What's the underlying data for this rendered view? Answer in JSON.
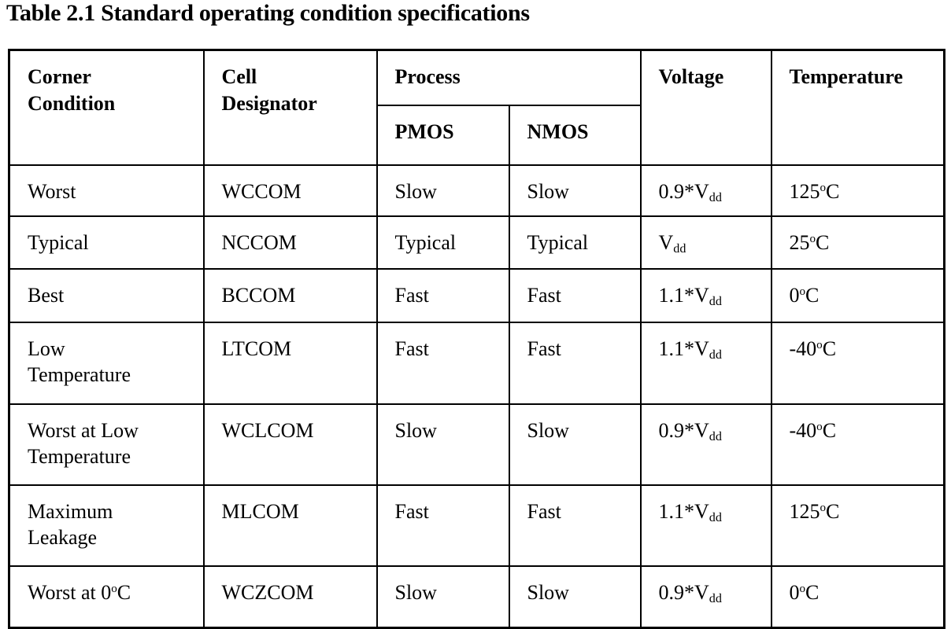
{
  "title": "Table 2.1 Standard operating condition specifications",
  "colors": {
    "text": "#000000",
    "background": "#ffffff",
    "border": "#000000"
  },
  "table": {
    "headers": {
      "corner": [
        {
          "text": "Corner"
        },
        {
          "br": true
        },
        {
          "text": "Condition"
        }
      ],
      "designator": [
        {
          "text": "Cell"
        },
        {
          "br": true
        },
        {
          "text": "Designator"
        }
      ],
      "process": "Process",
      "pmos": "PMOS",
      "nmos": "NMOS",
      "voltage": "Voltage",
      "temperature": "Temperature"
    },
    "rows": [
      {
        "corner": [
          {
            "text": "Worst"
          }
        ],
        "designator": "WCCOM",
        "pmos": "Slow",
        "nmos": "Slow",
        "voltage": [
          {
            "text": "0.9*V"
          },
          {
            "tag": "sub",
            "text": "dd"
          }
        ],
        "temperature": [
          {
            "text": "125"
          },
          {
            "tag": "sup",
            "text": "o"
          },
          {
            "text": "C"
          }
        ]
      },
      {
        "corner": [
          {
            "text": "Typical"
          }
        ],
        "designator": "NCCOM",
        "pmos": "Typical",
        "nmos": "Typical",
        "voltage": [
          {
            "text": "V"
          },
          {
            "tag": "sub",
            "text": "dd"
          }
        ],
        "temperature": [
          {
            "text": "25"
          },
          {
            "tag": "sup",
            "text": "o"
          },
          {
            "text": "C"
          }
        ]
      },
      {
        "corner": [
          {
            "text": "Best"
          }
        ],
        "designator": "BCCOM",
        "pmos": "Fast",
        "nmos": "Fast",
        "voltage": [
          {
            "text": "1.1*V"
          },
          {
            "tag": "sub",
            "text": "dd"
          }
        ],
        "temperature": [
          {
            "text": "0"
          },
          {
            "tag": "sup",
            "text": "o"
          },
          {
            "text": "C"
          }
        ]
      },
      {
        "corner": [
          {
            "text": "Low"
          },
          {
            "br": true
          },
          {
            "text": "Temperature"
          }
        ],
        "designator": "LTCOM",
        "pmos": "Fast",
        "nmos": "Fast",
        "voltage": [
          {
            "text": "1.1*V"
          },
          {
            "tag": "sub",
            "text": "dd"
          }
        ],
        "temperature": [
          {
            "text": "-40"
          },
          {
            "tag": "sup",
            "text": "o"
          },
          {
            "text": "C"
          }
        ]
      },
      {
        "corner": [
          {
            "text": "Worst at Low"
          },
          {
            "br": true
          },
          {
            "text": "Temperature"
          }
        ],
        "designator": "WCLCOM",
        "pmos": "Slow",
        "nmos": "Slow",
        "voltage": [
          {
            "text": "0.9*V"
          },
          {
            "tag": "sub",
            "text": "dd"
          }
        ],
        "temperature": [
          {
            "text": "-40"
          },
          {
            "tag": "sup",
            "text": "o"
          },
          {
            "text": "C"
          }
        ]
      },
      {
        "corner": [
          {
            "text": "Maximum"
          },
          {
            "br": true
          },
          {
            "text": "Leakage"
          }
        ],
        "designator": "MLCOM",
        "pmos": "Fast",
        "nmos": "Fast",
        "voltage": [
          {
            "text": "1.1*V"
          },
          {
            "tag": "sub",
            "text": "dd"
          }
        ],
        "temperature": [
          {
            "text": "125"
          },
          {
            "tag": "sup",
            "text": "o"
          },
          {
            "text": "C"
          }
        ]
      },
      {
        "corner": [
          {
            "text": "Worst at 0"
          },
          {
            "tag": "sup",
            "text": "o"
          },
          {
            "text": "C"
          }
        ],
        "designator": "WCZCOM",
        "pmos": "Slow",
        "nmos": "Slow",
        "voltage": [
          {
            "text": "0.9*V"
          },
          {
            "tag": "sub",
            "text": "dd"
          }
        ],
        "temperature": [
          {
            "text": "0"
          },
          {
            "tag": "sup",
            "text": "o"
          },
          {
            "text": "C"
          }
        ]
      }
    ]
  }
}
